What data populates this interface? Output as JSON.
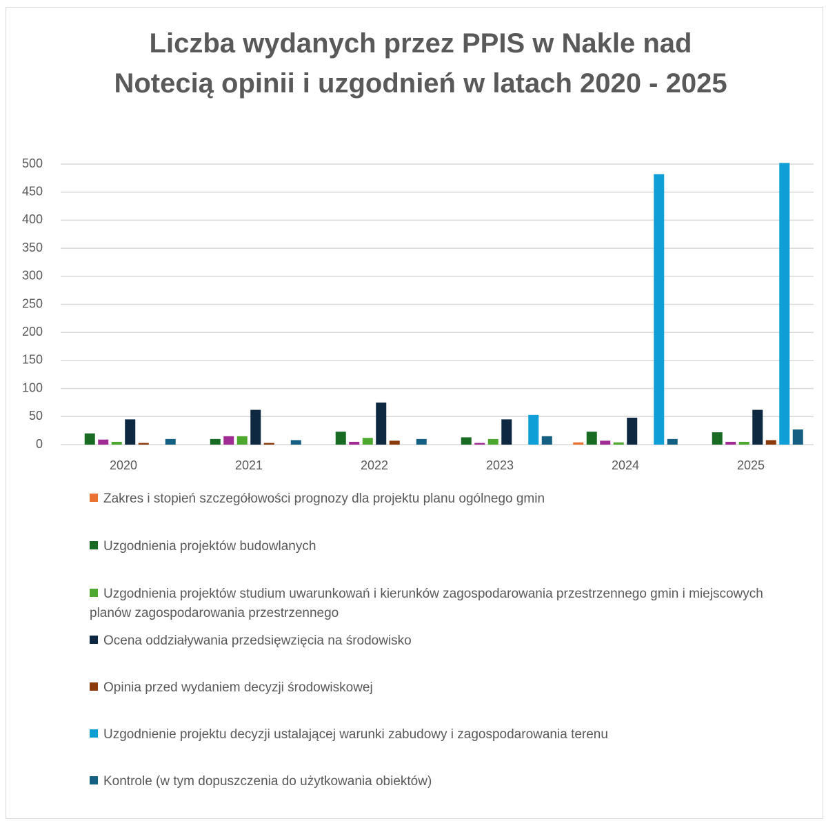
{
  "chart_data": {
    "type": "bar",
    "title": "Liczba wydanych przez PPIS w Nakle nad Notecią opinii i uzgodnień w latach 2020 - 2025",
    "categories": [
      "2020",
      "2021",
      "2022",
      "2023",
      "2024",
      "2025"
    ],
    "series": [
      {
        "name": "Zakres i stopień szczegółowości prognozy dla projektu planu ogólnego gmin",
        "color": "#e97132",
        "values": [
          0,
          0,
          0,
          0,
          4,
          0
        ]
      },
      {
        "name": "Uzgodnienia  projektów budowlanych",
        "color": "#196b24",
        "values": [
          20,
          10,
          23,
          13,
          23,
          22
        ]
      },
      {
        "color": "#a02b93",
        "values": [
          9,
          15,
          5,
          3,
          7,
          5
        ]
      },
      {
        "name": "Uzgodnienia projektów studium uwarunkowań i kierunków zagospodarowania przestrzennego gmin i miejscowych planów zagospodarowania przestrzennego",
        "color": "#4ea72e",
        "values": [
          5,
          15,
          12,
          10,
          4,
          5
        ]
      },
      {
        "name": "Ocena oddziaływania przedsięwzięcia na środowisko",
        "color": "#0e2841",
        "values": [
          45,
          62,
          75,
          45,
          48,
          62
        ]
      },
      {
        "name": "Opinia przed wydaniem decyzji środowiskowej",
        "color": "#8b3a0e",
        "values": [
          3,
          3,
          7,
          0,
          0,
          8
        ]
      },
      {
        "name": "Uzgodnienie projektu decyzji ustalającej warunki zabudowy i zagospodarowania terenu",
        "color": "#0f9ed5",
        "values": [
          0,
          0,
          0,
          53,
          482,
          502
        ]
      },
      {
        "name": "Kontrole (w tym dopuszczenia do użytkowania obiektów)",
        "color": "#156082",
        "values": [
          10,
          8,
          10,
          15,
          10,
          27
        ]
      }
    ],
    "ylim": [
      0,
      500
    ],
    "yticks": [
      0,
      50,
      100,
      150,
      200,
      250,
      300,
      350,
      400,
      450,
      500
    ],
    "grid": true
  }
}
